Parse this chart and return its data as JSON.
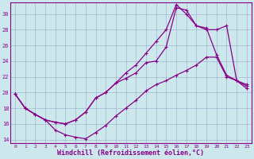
{
  "xlabel": "Windchill (Refroidissement éolien,°C)",
  "bg_color": "#cce8ec",
  "line_color": "#880088",
  "grid_color": "#99aacc",
  "xlim": [
    -0.5,
    23.5
  ],
  "ylim": [
    13.5,
    31.5
  ],
  "yticks": [
    14,
    16,
    18,
    20,
    22,
    24,
    26,
    28,
    30
  ],
  "xticks": [
    0,
    1,
    2,
    3,
    4,
    5,
    6,
    7,
    8,
    9,
    10,
    11,
    12,
    13,
    14,
    15,
    16,
    17,
    18,
    19,
    20,
    21,
    22,
    23
  ],
  "line1_x": [
    0,
    1,
    2,
    3,
    4,
    5,
    6,
    7,
    8,
    9,
    10,
    11,
    12,
    13,
    14,
    15,
    16,
    17,
    18,
    19,
    20,
    21,
    22,
    23
  ],
  "line1_y": [
    19.8,
    18.0,
    17.2,
    16.5,
    15.2,
    14.6,
    14.3,
    14.1,
    14.9,
    15.8,
    17.0,
    18.0,
    19.0,
    20.2,
    21.0,
    21.5,
    22.2,
    22.8,
    23.5,
    24.5,
    24.5,
    22.0,
    21.5,
    21.0
  ],
  "line2_x": [
    0,
    1,
    2,
    3,
    4,
    5,
    6,
    7,
    8,
    9,
    10,
    11,
    12,
    13,
    14,
    15,
    16,
    17,
    18,
    19,
    20,
    21,
    22,
    23
  ],
  "line2_y": [
    19.8,
    18.0,
    17.2,
    16.5,
    16.2,
    16.0,
    16.5,
    17.5,
    19.3,
    20.0,
    21.2,
    21.8,
    22.5,
    23.8,
    24.0,
    25.8,
    30.8,
    30.5,
    28.5,
    28.2,
    24.8,
    22.2,
    21.5,
    20.8
  ],
  "line3_x": [
    0,
    1,
    2,
    3,
    4,
    5,
    6,
    7,
    8,
    9,
    10,
    11,
    12,
    13,
    14,
    15,
    16,
    17,
    18,
    19,
    20,
    21,
    22,
    23
  ],
  "line3_y": [
    19.8,
    18.0,
    17.2,
    16.5,
    16.2,
    16.0,
    16.5,
    17.5,
    19.3,
    20.0,
    21.2,
    22.5,
    23.5,
    25.0,
    26.5,
    28.0,
    31.2,
    30.0,
    28.5,
    28.0,
    28.0,
    28.5,
    21.5,
    20.5
  ]
}
